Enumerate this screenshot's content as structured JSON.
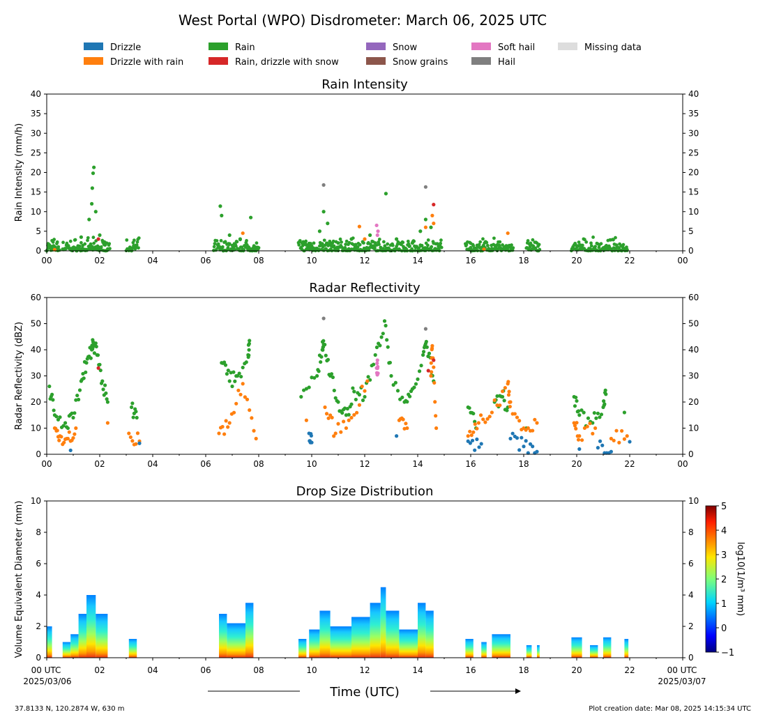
{
  "figure": {
    "title": "West Portal (WPO) Disdrometer: March 06, 2025 UTC",
    "footer_left": "37.8133 N, 120.2874 W, 630 m",
    "footer_right": "Plot creation date: Mar 08, 2025 14:15:34 UTC",
    "xlabel": "Time (UTC)",
    "x_start_line1": "00 UTC",
    "x_start_line2": "2025/03/06",
    "x_end_line1": "00 UTC",
    "x_end_line2": "2025/03/07",
    "hour_ticks": [
      "00",
      "02",
      "04",
      "06",
      "08",
      "10",
      "12",
      "14",
      "16",
      "18",
      "20",
      "22",
      "00"
    ]
  },
  "legend": [
    {
      "label": "Drizzle",
      "color": "#1f77b4"
    },
    {
      "label": "Drizzle with rain",
      "color": "#ff7f0e"
    },
    {
      "label": "Rain",
      "color": "#2ca02c"
    },
    {
      "label": "Rain, drizzle with snow",
      "color": "#d62728"
    },
    {
      "label": "Snow",
      "color": "#9467bd"
    },
    {
      "label": "Snow grains",
      "color": "#8c564b"
    },
    {
      "label": "Soft hail",
      "color": "#e377c2"
    },
    {
      "label": "Hail",
      "color": "#7f7f7f"
    },
    {
      "label": "Missing data",
      "color": "#dddddd"
    }
  ],
  "chart_data": [
    {
      "type": "scatter",
      "title": "Rain Intensity",
      "ylabel": "Rain Intensity (mm/h)",
      "xlim": [
        0,
        24
      ],
      "ylim": [
        0,
        40
      ],
      "yticks": [
        0,
        5,
        10,
        15,
        20,
        25,
        30,
        35,
        40
      ],
      "active_periods_hours": [
        [
          0.0,
          0.5
        ],
        [
          0.6,
          2.4
        ],
        [
          3.0,
          3.5
        ],
        [
          6.3,
          8.0
        ],
        [
          9.5,
          14.9
        ],
        [
          15.8,
          17.6
        ],
        [
          18.1,
          18.6
        ],
        [
          19.8,
          21.9
        ]
      ],
      "series": [
        {
          "name": "Rain",
          "color": "#2ca02c",
          "points": [
            [
              0.05,
              1.8
            ],
            [
              0.2,
              0.6
            ],
            [
              0.9,
              0.3
            ],
            [
              1.3,
              3.5
            ],
            [
              1.6,
              8
            ],
            [
              1.7,
              12
            ],
            [
              1.72,
              16
            ],
            [
              1.75,
              19.8
            ],
            [
              1.78,
              21.3
            ],
            [
              1.85,
              10
            ],
            [
              2.0,
              4
            ],
            [
              2.2,
              1.5
            ],
            [
              6.55,
              11.4
            ],
            [
              6.6,
              9
            ],
            [
              6.9,
              4
            ],
            [
              7.3,
              3
            ],
            [
              7.7,
              8.5
            ],
            [
              9.8,
              1.5
            ],
            [
              10.3,
              5
            ],
            [
              10.45,
              10
            ],
            [
              10.6,
              7
            ],
            [
              11.0,
              2
            ],
            [
              11.5,
              3
            ],
            [
              12.2,
              4
            ],
            [
              12.8,
              14.6
            ],
            [
              13.2,
              3
            ],
            [
              13.8,
              2
            ],
            [
              14.1,
              5
            ],
            [
              14.3,
              8
            ],
            [
              14.5,
              6
            ],
            [
              16.0,
              0.8
            ],
            [
              17.0,
              1.5
            ],
            [
              17.4,
              1.2
            ],
            [
              18.2,
              0.3
            ],
            [
              20.0,
              1.3
            ],
            [
              20.6,
              0.3
            ],
            [
              21.2,
              0.8
            ],
            [
              21.9,
              0.3
            ]
          ]
        },
        {
          "name": "Drizzle with rain",
          "color": "#ff7f0e",
          "points": [
            [
              0.3,
              0.3
            ],
            [
              7.4,
              4.5
            ],
            [
              11.8,
              6.2
            ],
            [
              12.0,
              3
            ],
            [
              14.3,
              6
            ],
            [
              14.55,
              9
            ],
            [
              14.6,
              7
            ],
            [
              17.4,
              4.5
            ],
            [
              16.5,
              0.4
            ]
          ]
        },
        {
          "name": "Hail",
          "color": "#7f7f7f",
          "points": [
            [
              10.45,
              16.8
            ],
            [
              14.3,
              16.3
            ]
          ]
        },
        {
          "name": "Rain, drizzle with snow",
          "color": "#d62728",
          "points": [
            [
              14.6,
              11.8
            ],
            [
              1.95,
              3
            ]
          ]
        },
        {
          "name": "Soft hail",
          "color": "#e377c2",
          "points": [
            [
              12.45,
              6.5
            ],
            [
              12.5,
              5
            ],
            [
              12.48,
              4
            ]
          ]
        }
      ]
    },
    {
      "type": "scatter",
      "title": "Radar Reflectivity",
      "ylabel": "Radar Reflectivity (dBZ)",
      "xlim": [
        0,
        24
      ],
      "ylim": [
        0,
        60
      ],
      "yticks": [
        0,
        10,
        20,
        30,
        40,
        50,
        60
      ],
      "series": [
        {
          "name": "Rain",
          "color": "#2ca02c",
          "points": [
            [
              0.1,
              26
            ],
            [
              0.3,
              15
            ],
            [
              0.7,
              12
            ],
            [
              1.0,
              14
            ],
            [
              1.3,
              28
            ],
            [
              1.5,
              35
            ],
            [
              1.7,
              40
            ],
            [
              1.75,
              43
            ],
            [
              1.9,
              38
            ],
            [
              2.1,
              28
            ],
            [
              2.3,
              20
            ],
            [
              3.2,
              18
            ],
            [
              3.4,
              14
            ],
            [
              6.6,
              35
            ],
            [
              6.9,
              28
            ],
            [
              7.2,
              30
            ],
            [
              7.6,
              38
            ],
            [
              7.65,
              43.5
            ],
            [
              9.6,
              22
            ],
            [
              10.2,
              30
            ],
            [
              10.4,
              40
            ],
            [
              10.45,
              42
            ],
            [
              10.7,
              30
            ],
            [
              11.0,
              20
            ],
            [
              11.3,
              15
            ],
            [
              11.6,
              24
            ],
            [
              12.0,
              22
            ],
            [
              12.4,
              38
            ],
            [
              12.75,
              51
            ],
            [
              13.0,
              30
            ],
            [
              13.5,
              20
            ],
            [
              13.8,
              25
            ],
            [
              14.2,
              38
            ],
            [
              14.35,
              41
            ],
            [
              14.6,
              28
            ],
            [
              15.9,
              18
            ],
            [
              16.2,
              10
            ],
            [
              16.9,
              20
            ],
            [
              17.2,
              22
            ],
            [
              17.4,
              18
            ],
            [
              18.1,
              10
            ],
            [
              19.9,
              22
            ],
            [
              20.1,
              15
            ],
            [
              20.6,
              12
            ],
            [
              21.0,
              18
            ],
            [
              21.1,
              23
            ],
            [
              21.8,
              16
            ]
          ]
        },
        {
          "name": "Drizzle with rain",
          "color": "#ff7f0e",
          "points": [
            [
              0.3,
              10
            ],
            [
              0.5,
              7
            ],
            [
              0.8,
              6
            ],
            [
              1.1,
              10
            ],
            [
              2.3,
              12
            ],
            [
              3.1,
              8
            ],
            [
              3.5,
              5
            ],
            [
              6.5,
              8
            ],
            [
              6.9,
              12
            ],
            [
              7.4,
              27
            ],
            [
              7.9,
              6
            ],
            [
              9.8,
              13
            ],
            [
              10.5,
              18
            ],
            [
              10.9,
              8
            ],
            [
              11.5,
              14
            ],
            [
              12.1,
              28
            ],
            [
              13.3,
              13
            ],
            [
              13.6,
              10
            ],
            [
              14.5,
              30
            ],
            [
              14.55,
              41.5
            ],
            [
              14.7,
              10
            ],
            [
              15.9,
              7
            ],
            [
              16.3,
              12
            ],
            [
              16.8,
              16
            ],
            [
              17.4,
              27
            ],
            [
              17.5,
              20
            ],
            [
              18.0,
              10
            ],
            [
              18.5,
              12
            ],
            [
              19.9,
              12
            ],
            [
              20.1,
              7
            ],
            [
              20.7,
              10
            ],
            [
              21.3,
              6
            ],
            [
              21.9,
              7
            ]
          ]
        },
        {
          "name": "Drizzle",
          "color": "#1f77b4",
          "points": [
            [
              0.9,
              1.5
            ],
            [
              3.5,
              4.2
            ],
            [
              9.9,
              8
            ],
            [
              10.0,
              4.5
            ],
            [
              13.2,
              7
            ],
            [
              15.9,
              5
            ],
            [
              16.4,
              4
            ],
            [
              17.5,
              6
            ],
            [
              18.0,
              3
            ],
            [
              18.5,
              1
            ],
            [
              20.1,
              2
            ],
            [
              20.8,
              2.5
            ],
            [
              21.3,
              1
            ],
            [
              22.0,
              4.8
            ]
          ]
        },
        {
          "name": "Hail",
          "color": "#7f7f7f",
          "points": [
            [
              10.45,
              52
            ],
            [
              14.3,
              48
            ]
          ]
        },
        {
          "name": "Rain, drizzle with snow",
          "color": "#d62728",
          "points": [
            [
              1.95,
              33
            ],
            [
              14.6,
              36
            ],
            [
              14.4,
              32
            ]
          ]
        },
        {
          "name": "Soft hail",
          "color": "#e377c2",
          "points": [
            [
              12.45,
              33
            ],
            [
              12.5,
              31
            ],
            [
              12.48,
              36
            ]
          ]
        }
      ]
    },
    {
      "type": "heatmap",
      "title": "Drop Size Distribution",
      "ylabel": "Volume Equivalent Diameter (mm)",
      "xlim": [
        0,
        24
      ],
      "ylim": [
        0,
        10
      ],
      "yticks": [
        0,
        2,
        4,
        6,
        8,
        10
      ],
      "colorbar": {
        "label": "log10(1/m³ mm)",
        "range": [
          -1,
          5
        ],
        "ticks": [
          -1,
          0,
          1,
          2,
          3,
          4,
          5
        ]
      },
      "columns": [
        {
          "x": [
            0.0,
            0.2
          ],
          "top": 2.0
        },
        {
          "x": [
            0.6,
            0.9
          ],
          "top": 1.0
        },
        {
          "x": [
            0.9,
            1.2
          ],
          "top": 1.5
        },
        {
          "x": [
            1.2,
            1.5
          ],
          "top": 2.8
        },
        {
          "x": [
            1.5,
            1.85
          ],
          "top": 4.0
        },
        {
          "x": [
            1.85,
            2.3
          ],
          "top": 2.8
        },
        {
          "x": [
            3.1,
            3.4
          ],
          "top": 1.2
        },
        {
          "x": [
            6.5,
            6.8
          ],
          "top": 2.8
        },
        {
          "x": [
            6.8,
            7.5
          ],
          "top": 2.2
        },
        {
          "x": [
            7.5,
            7.8
          ],
          "top": 3.5
        },
        {
          "x": [
            9.5,
            9.8
          ],
          "top": 1.2
        },
        {
          "x": [
            9.9,
            10.3
          ],
          "top": 1.8
        },
        {
          "x": [
            10.3,
            10.7
          ],
          "top": 3.0
        },
        {
          "x": [
            10.7,
            11.5
          ],
          "top": 2.0
        },
        {
          "x": [
            11.5,
            12.2
          ],
          "top": 2.6
        },
        {
          "x": [
            12.2,
            12.6
          ],
          "top": 3.5
        },
        {
          "x": [
            12.6,
            12.8
          ],
          "top": 4.5
        },
        {
          "x": [
            12.8,
            13.3
          ],
          "top": 3.0
        },
        {
          "x": [
            13.3,
            14.0
          ],
          "top": 1.8
        },
        {
          "x": [
            14.0,
            14.3
          ],
          "top": 3.5
        },
        {
          "x": [
            14.3,
            14.6
          ],
          "top": 3.0
        },
        {
          "x": [
            15.8,
            16.1
          ],
          "top": 1.2
        },
        {
          "x": [
            16.4,
            16.6
          ],
          "top": 1.0
        },
        {
          "x": [
            16.8,
            17.5
          ],
          "top": 1.5
        },
        {
          "x": [
            18.1,
            18.3
          ],
          "top": 0.8
        },
        {
          "x": [
            18.5,
            18.6
          ],
          "top": 0.8
        },
        {
          "x": [
            19.8,
            20.2
          ],
          "top": 1.3
        },
        {
          "x": [
            20.5,
            20.8
          ],
          "top": 0.8
        },
        {
          "x": [
            21.0,
            21.3
          ],
          "top": 1.3
        },
        {
          "x": [
            21.8,
            21.95
          ],
          "top": 1.2
        }
      ]
    }
  ]
}
